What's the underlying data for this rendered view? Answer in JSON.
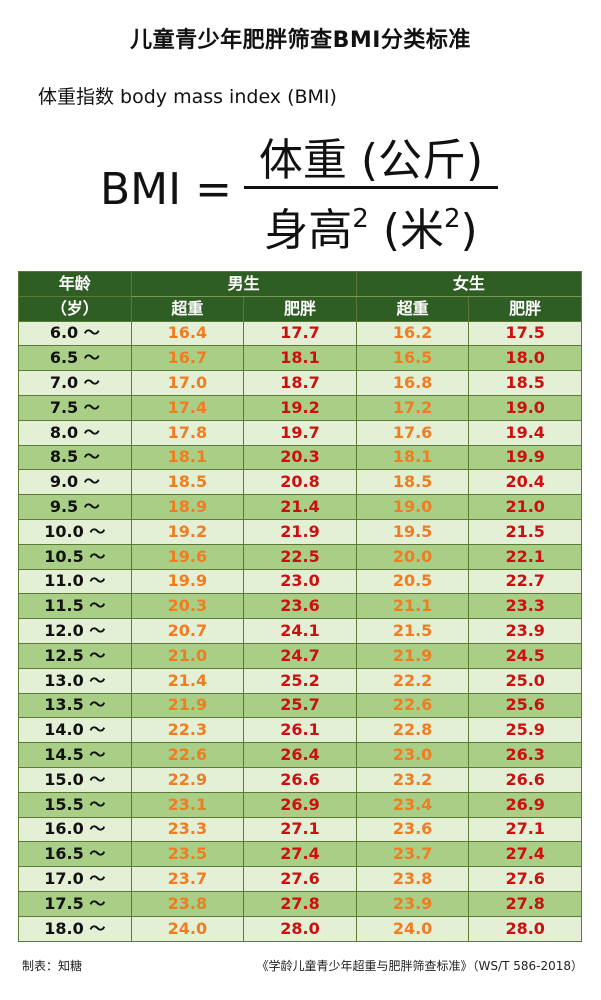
{
  "title": "儿童青少年肥胖筛查BMI分类标准",
  "subtitle": "体重指数 body mass index (BMI)",
  "formula": {
    "lhs": "BMI =",
    "numerator": "体重 (公斤)",
    "denominator_main": "身高",
    "denominator_sup": "2",
    "denominator_unit": " (米",
    "denominator_unit_sup": "2",
    "denominator_close": ")"
  },
  "table": {
    "age_header_line1": "年龄",
    "age_header_line2": "（岁）",
    "male_label": "男生",
    "female_label": "女生",
    "overweight_label": "超重",
    "obese_label": "肥胖",
    "rows": [
      {
        "age": "6.0 ～",
        "m_over": "16.4",
        "m_obese": "17.7",
        "f_over": "16.2",
        "f_obese": "17.5"
      },
      {
        "age": "6.5 ～",
        "m_over": "16.7",
        "m_obese": "18.1",
        "f_over": "16.5",
        "f_obese": "18.0"
      },
      {
        "age": "7.0 ～",
        "m_over": "17.0",
        "m_obese": "18.7",
        "f_over": "16.8",
        "f_obese": "18.5"
      },
      {
        "age": "7.5 ～",
        "m_over": "17.4",
        "m_obese": "19.2",
        "f_over": "17.2",
        "f_obese": "19.0"
      },
      {
        "age": "8.0 ～",
        "m_over": "17.8",
        "m_obese": "19.7",
        "f_over": "17.6",
        "f_obese": "19.4"
      },
      {
        "age": "8.5 ～",
        "m_over": "18.1",
        "m_obese": "20.3",
        "f_over": "18.1",
        "f_obese": "19.9"
      },
      {
        "age": "9.0 ～",
        "m_over": "18.5",
        "m_obese": "20.8",
        "f_over": "18.5",
        "f_obese": "20.4"
      },
      {
        "age": "9.5 ～",
        "m_over": "18.9",
        "m_obese": "21.4",
        "f_over": "19.0",
        "f_obese": "21.0"
      },
      {
        "age": "10.0 ～",
        "m_over": "19.2",
        "m_obese": "21.9",
        "f_over": "19.5",
        "f_obese": "21.5"
      },
      {
        "age": "10.5 ～",
        "m_over": "19.6",
        "m_obese": "22.5",
        "f_over": "20.0",
        "f_obese": "22.1"
      },
      {
        "age": "11.0 ～",
        "m_over": "19.9",
        "m_obese": "23.0",
        "f_over": "20.5",
        "f_obese": "22.7"
      },
      {
        "age": "11.5 ～",
        "m_over": "20.3",
        "m_obese": "23.6",
        "f_over": "21.1",
        "f_obese": "23.3"
      },
      {
        "age": "12.0 ～",
        "m_over": "20.7",
        "m_obese": "24.1",
        "f_over": "21.5",
        "f_obese": "23.9"
      },
      {
        "age": "12.5 ～",
        "m_over": "21.0",
        "m_obese": "24.7",
        "f_over": "21.9",
        "f_obese": "24.5"
      },
      {
        "age": "13.0 ～",
        "m_over": "21.4",
        "m_obese": "25.2",
        "f_over": "22.2",
        "f_obese": "25.0"
      },
      {
        "age": "13.5 ～",
        "m_over": "21.9",
        "m_obese": "25.7",
        "f_over": "22.6",
        "f_obese": "25.6"
      },
      {
        "age": "14.0 ～",
        "m_over": "22.3",
        "m_obese": "26.1",
        "f_over": "22.8",
        "f_obese": "25.9"
      },
      {
        "age": "14.5 ～",
        "m_over": "22.6",
        "m_obese": "26.4",
        "f_over": "23.0",
        "f_obese": "26.3"
      },
      {
        "age": "15.0 ～",
        "m_over": "22.9",
        "m_obese": "26.6",
        "f_over": "23.2",
        "f_obese": "26.6"
      },
      {
        "age": "15.5 ～",
        "m_over": "23.1",
        "m_obese": "26.9",
        "f_over": "23.4",
        "f_obese": "26.9"
      },
      {
        "age": "16.0 ～",
        "m_over": "23.3",
        "m_obese": "27.1",
        "f_over": "23.6",
        "f_obese": "27.1"
      },
      {
        "age": "16.5 ～",
        "m_over": "23.5",
        "m_obese": "27.4",
        "f_over": "23.7",
        "f_obese": "27.4"
      },
      {
        "age": "17.0 ～",
        "m_over": "23.7",
        "m_obese": "27.6",
        "f_over": "23.8",
        "f_obese": "27.6"
      },
      {
        "age": "17.5 ～",
        "m_over": "23.8",
        "m_obese": "27.8",
        "f_over": "23.9",
        "f_obese": "27.8"
      },
      {
        "age": "18.0 ～",
        "m_over": "24.0",
        "m_obese": "28.0",
        "f_over": "24.0",
        "f_obese": "28.0"
      }
    ]
  },
  "footer": {
    "left": "制表：知糖",
    "right": "《学龄儿童青少年超重与肥胖筛查标准》（WS/T 586-2018）"
  },
  "colors": {
    "header_bg": "#2f5e24",
    "row_light": "#e4f0d6",
    "row_dark": "#a9cf86",
    "overweight_text": "#f07d22",
    "obese_text": "#cc1010"
  }
}
